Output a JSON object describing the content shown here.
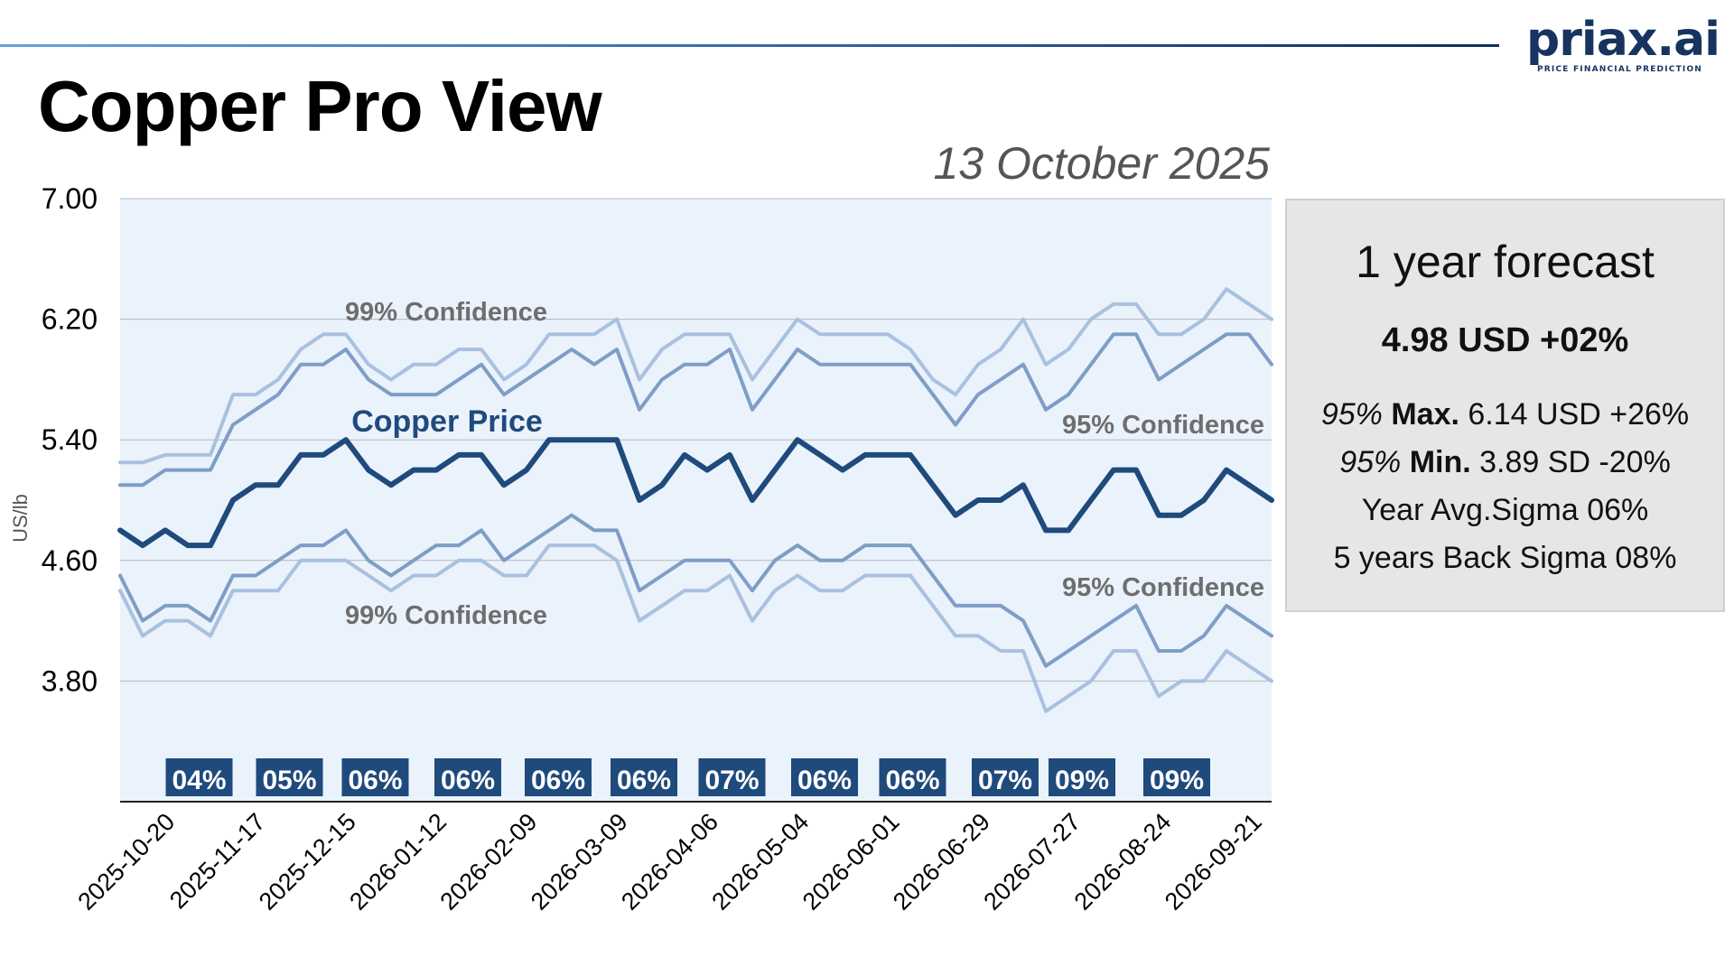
{
  "brand": {
    "name": "priax.ai",
    "tagline": "PRICE FINANCIAL PREDICTION",
    "rule_colors": [
      "#6aa2d8",
      "#3a6fb2",
      "#0f2d5c"
    ]
  },
  "page": {
    "title": "Copper Pro View",
    "date": "13 October 2025"
  },
  "forecast_panel": {
    "title": "1 year forecast",
    "value": "4.98 USD +02%",
    "max": {
      "pct": "95%",
      "label": "Max.",
      "value": "6.14 USD +26%"
    },
    "min": {
      "pct": "95%",
      "label": "Min.",
      "value": "3.89 SD -20%"
    },
    "year_avg": "Year Avg.Sigma 06%",
    "back_sigma": "5 years Back Sigma 08%"
  },
  "chart_data": {
    "type": "line",
    "ylabel": "US/lb",
    "ylim": [
      3.0,
      7.0
    ],
    "yticks": [
      "7.00",
      "6.20",
      "5.40",
      "4.60",
      "3.80"
    ],
    "yticks_values": [
      7.0,
      6.2,
      5.4,
      4.6,
      3.8
    ],
    "xticks": [
      "2025-10-20",
      "2025-11-17",
      "2025-12-15",
      "2026-01-12",
      "2026-02-09",
      "2026-03-09",
      "2026-04-06",
      "2026-05-04",
      "2026-06-01",
      "2026-06-29",
      "2026-07-27",
      "2026-08-24",
      "2026-09-21"
    ],
    "background": "#eaf2fc",
    "grid": true,
    "series": [
      {
        "key": "upper99",
        "color": "#a9c1df",
        "values": [
          5.25,
          5.25,
          5.3,
          5.3,
          5.3,
          5.7,
          5.7,
          5.8,
          6.0,
          6.1,
          6.1,
          5.9,
          5.8,
          5.9,
          5.9,
          6.0,
          6.0,
          5.8,
          5.9,
          6.1,
          6.1,
          6.1,
          6.2,
          5.8,
          6.0,
          6.1,
          6.1,
          6.1,
          5.8,
          6.0,
          6.2,
          6.1,
          6.1,
          6.1,
          6.1,
          6.0,
          5.8,
          5.7,
          5.9,
          6.0,
          6.2,
          5.9,
          6.0,
          6.2,
          6.3,
          6.3,
          6.1,
          6.1,
          6.2,
          6.4,
          6.3,
          6.2
        ]
      },
      {
        "key": "upper95",
        "color": "#7f9dc6",
        "values": [
          5.1,
          5.1,
          5.2,
          5.2,
          5.2,
          5.5,
          5.6,
          5.7,
          5.9,
          5.9,
          6.0,
          5.8,
          5.7,
          5.7,
          5.7,
          5.8,
          5.9,
          5.7,
          5.8,
          5.9,
          6.0,
          5.9,
          6.0,
          5.6,
          5.8,
          5.9,
          5.9,
          6.0,
          5.6,
          5.8,
          6.0,
          5.9,
          5.9,
          5.9,
          5.9,
          5.9,
          5.7,
          5.5,
          5.7,
          5.8,
          5.9,
          5.6,
          5.7,
          5.9,
          6.1,
          6.1,
          5.8,
          5.9,
          6.0,
          6.1,
          6.1,
          5.9
        ]
      },
      {
        "key": "price",
        "color": "#1f4a7c",
        "values": [
          4.8,
          4.7,
          4.8,
          4.7,
          4.7,
          5.0,
          5.1,
          5.1,
          5.3,
          5.3,
          5.4,
          5.2,
          5.1,
          5.2,
          5.2,
          5.3,
          5.3,
          5.1,
          5.2,
          5.4,
          5.4,
          5.4,
          5.4,
          5.0,
          5.1,
          5.3,
          5.2,
          5.3,
          5.0,
          5.2,
          5.4,
          5.3,
          5.2,
          5.3,
          5.3,
          5.3,
          5.1,
          4.9,
          5.0,
          5.0,
          5.1,
          4.8,
          4.8,
          5.0,
          5.2,
          5.2,
          4.9,
          4.9,
          5.0,
          5.2,
          5.1,
          5.0
        ]
      },
      {
        "key": "lower95",
        "color": "#7f9dc6",
        "values": [
          4.5,
          4.2,
          4.3,
          4.3,
          4.2,
          4.5,
          4.5,
          4.6,
          4.7,
          4.7,
          4.8,
          4.6,
          4.5,
          4.6,
          4.7,
          4.7,
          4.8,
          4.6,
          4.7,
          4.8,
          4.9,
          4.8,
          4.8,
          4.4,
          4.5,
          4.6,
          4.6,
          4.6,
          4.4,
          4.6,
          4.7,
          4.6,
          4.6,
          4.7,
          4.7,
          4.7,
          4.5,
          4.3,
          4.3,
          4.3,
          4.2,
          3.9,
          4.0,
          4.1,
          4.2,
          4.3,
          4.0,
          4.0,
          4.1,
          4.3,
          4.2,
          4.1
        ]
      },
      {
        "key": "lower99",
        "color": "#a9c1df",
        "values": [
          4.4,
          4.1,
          4.2,
          4.2,
          4.1,
          4.4,
          4.4,
          4.4,
          4.6,
          4.6,
          4.6,
          4.5,
          4.4,
          4.5,
          4.5,
          4.6,
          4.6,
          4.5,
          4.5,
          4.7,
          4.7,
          4.7,
          4.6,
          4.2,
          4.3,
          4.4,
          4.4,
          4.5,
          4.2,
          4.4,
          4.5,
          4.4,
          4.4,
          4.5,
          4.5,
          4.5,
          4.3,
          4.1,
          4.1,
          4.0,
          4.0,
          3.6,
          3.7,
          3.8,
          4.0,
          4.0,
          3.7,
          3.8,
          3.8,
          4.0,
          3.9,
          3.8
        ]
      }
    ],
    "annotations": {
      "copper_price": "Copper Price",
      "upper99": "99% Confidence",
      "lower99": "99% Confidence",
      "upper95": "95% Confidence",
      "lower95": "95% Confidence"
    },
    "sigma_boxes": [
      {
        "label": "04%",
        "position": 3.5
      },
      {
        "label": "05%",
        "position": 7.5
      },
      {
        "label": "06%",
        "position": 11.3
      },
      {
        "label": "06%",
        "position": 15.4
      },
      {
        "label": "06%",
        "position": 19.4
      },
      {
        "label": "06%",
        "position": 23.2
      },
      {
        "label": "07%",
        "position": 27.1
      },
      {
        "label": "06%",
        "position": 31.2
      },
      {
        "label": "06%",
        "position": 35.1
      },
      {
        "label": "07%",
        "position": 39.2
      },
      {
        "label": "09%",
        "position": 42.6
      },
      {
        "label": "09%",
        "position": 46.8
      }
    ],
    "sigma_box_color": "#1f4a7c"
  }
}
